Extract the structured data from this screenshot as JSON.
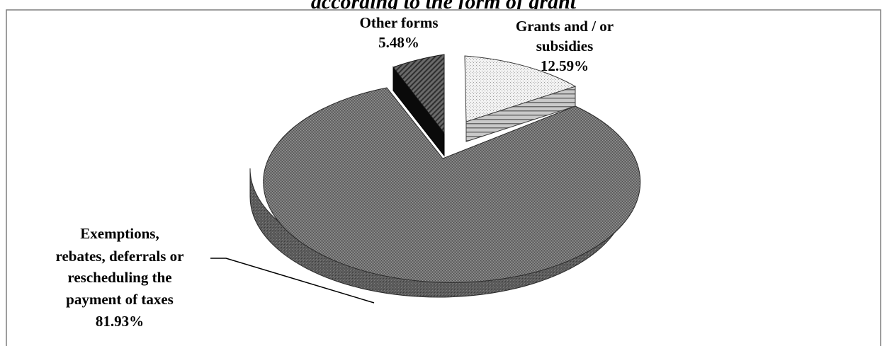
{
  "chart_data": {
    "type": "pie",
    "title_fragment": "according to the form of grant",
    "slices": [
      {
        "label_lines": [
          "Grants and / or",
          "subsidies"
        ],
        "value": 12.59,
        "value_label": "12.59%",
        "pattern": "dotted-light",
        "side_pattern": "horizontal-lines"
      },
      {
        "label_lines": [
          "Exemptions,",
          "rebates, deferrals or",
          "rescheduling the",
          "payment of taxes"
        ],
        "value": 81.93,
        "value_label": "81.93%",
        "pattern": "fine-dark-gray",
        "side_pattern": "fine-dark-gray"
      },
      {
        "label_lines": [
          "Other forms"
        ],
        "value": 5.48,
        "value_label": "5.48%",
        "pattern": "diagonal-dark",
        "side_pattern": "solid-black"
      }
    ],
    "colors": {
      "border": "#7f7f7f",
      "main": "#6e6e6e",
      "main_side": "#555555",
      "other_top": "#505050",
      "other_side": "#0a0a0a"
    }
  }
}
